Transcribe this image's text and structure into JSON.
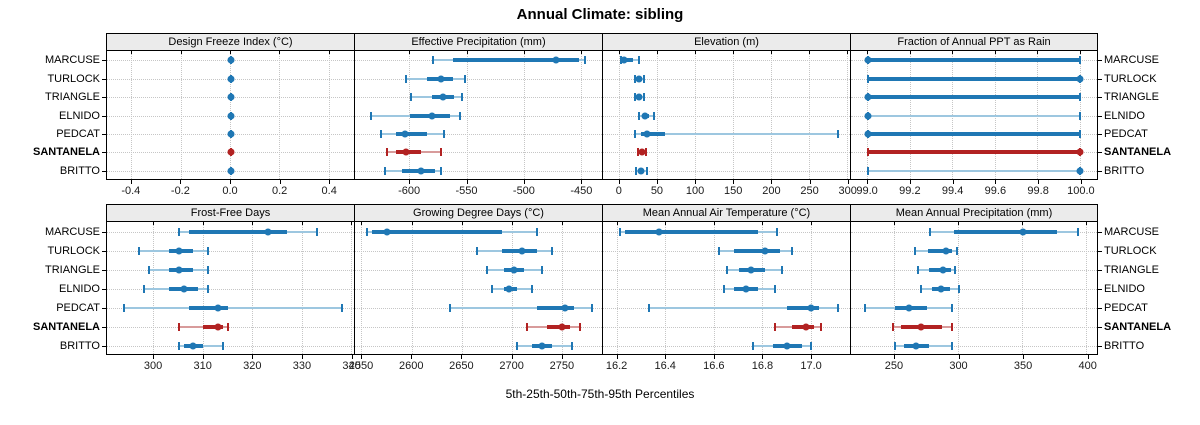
{
  "title": "Annual Climate: sibling",
  "caption": "5th-25th-50th-75th-95th Percentiles",
  "sites": [
    "MARCUSE",
    "TURLOCK",
    "TRIANGLE",
    "ELNIDO",
    "PEDCAT",
    "SANTANELA",
    "BRITTO"
  ],
  "colors": {
    "series": "#1f77b4",
    "series_light": "#9dc7e0",
    "highlight": "#b22222",
    "highlight_light": "#d89b9b",
    "header_bg": "#ebebeb",
    "grid": "#c6c6c6",
    "border": "#000000"
  },
  "chart_data": {
    "type": "scatter",
    "subtype": "trellis-percentile-dotplot",
    "title": "Annual Climate: sibling",
    "footnote": "5th-25th-50th-75th-95th Percentiles",
    "categories": [
      "MARCUSE",
      "TURLOCK",
      "TRIANGLE",
      "ELNIDO",
      "PEDCAT",
      "SANTANELA",
      "BRITTO"
    ],
    "highlight_category": "SANTANELA",
    "percentiles": [
      5,
      25,
      50,
      75,
      95
    ],
    "grid": true,
    "panels": [
      {
        "title": "Design Freeze Index (°C)",
        "row": 1,
        "col": 1,
        "xlim": [
          -0.5,
          0.5
        ],
        "xticks": [
          "-0.4",
          "-0.2",
          "0.0",
          "0.2",
          "0.4"
        ],
        "series": {
          "MARCUSE": [
            0,
            0,
            0,
            0,
            0
          ],
          "TURLOCK": [
            0,
            0,
            0,
            0,
            0
          ],
          "TRIANGLE": [
            0,
            0,
            0,
            0,
            0
          ],
          "ELNIDO": [
            0,
            0,
            0,
            0,
            0
          ],
          "PEDCAT": [
            0,
            0,
            0,
            0,
            0
          ],
          "SANTANELA": [
            0,
            0,
            0,
            0,
            0
          ],
          "BRITTO": [
            0,
            0,
            0,
            0,
            0
          ]
        }
      },
      {
        "title": "Effective Precipitation (mm)",
        "row": 1,
        "col": 2,
        "xlim": [
          -648,
          -432
        ],
        "xticks": [
          "-600",
          "-550",
          "-500",
          "-450"
        ],
        "series": {
          "MARCUSE": [
            -580,
            -562,
            -472,
            -452,
            -447
          ],
          "TURLOCK": [
            -603,
            -585,
            -573,
            -562,
            -552
          ],
          "TRIANGLE": [
            -599,
            -581,
            -571,
            -561,
            -554
          ],
          "ELNIDO": [
            -634,
            -600,
            -581,
            -565,
            -556
          ],
          "PEDCAT": [
            -625,
            -612,
            -604,
            -585,
            -570
          ],
          "SANTANELA": [
            -620,
            -612,
            -603,
            -590,
            -573
          ],
          "BRITTO": [
            -622,
            -607,
            -590,
            -578,
            -573
          ]
        }
      },
      {
        "title": "Elevation (m)",
        "row": 1,
        "col": 3,
        "xlim": [
          -22,
          303
        ],
        "xticks": [
          "0",
          "50",
          "100",
          "150",
          "200",
          "250",
          "300"
        ],
        "series": {
          "MARCUSE": [
            2,
            3,
            5,
            18,
            25
          ],
          "TURLOCK": [
            20,
            23,
            26,
            29,
            32
          ],
          "TRIANGLE": [
            20,
            23,
            26,
            29,
            32
          ],
          "ELNIDO": [
            26,
            30,
            33,
            38,
            45
          ],
          "PEDCAT": [
            20,
            28,
            36,
            60,
            287
          ],
          "SANTANELA": [
            24,
            27,
            29,
            31,
            34
          ],
          "BRITTO": [
            22,
            26,
            28,
            31,
            36
          ]
        }
      },
      {
        "title": "Fraction of Annual PPT as Rain",
        "row": 1,
        "col": 4,
        "xlim": [
          98.92,
          100.08
        ],
        "xticks": [
          "99.0",
          "99.2",
          "99.4",
          "99.6",
          "99.8",
          "100.0"
        ],
        "series": {
          "MARCUSE": [
            99.0,
            99.0,
            99.0,
            100.0,
            100.0
          ],
          "TURLOCK": [
            99.0,
            99.0,
            100.0,
            100.0,
            100.0
          ],
          "TRIANGLE": [
            99.0,
            99.0,
            99.0,
            100.0,
            100.0
          ],
          "ELNIDO": [
            99.0,
            99.0,
            99.0,
            99.0,
            100.0
          ],
          "PEDCAT": [
            99.0,
            99.0,
            99.0,
            100.0,
            100.0
          ],
          "SANTANELA": [
            99.0,
            99.0,
            100.0,
            100.0,
            100.0
          ],
          "BRITTO": [
            99.0,
            100.0,
            100.0,
            100.0,
            100.0
          ]
        }
      },
      {
        "title": "Frost-Free Days",
        "row": 2,
        "col": 1,
        "xlim": [
          290.5,
          340.5
        ],
        "xticks": [
          "300",
          "310",
          "320",
          "330",
          "340"
        ],
        "series": {
          "MARCUSE": [
            305,
            307,
            323,
            327,
            333
          ],
          "TURLOCK": [
            297,
            303,
            305,
            308,
            311
          ],
          "TRIANGLE": [
            299,
            303,
            305,
            308,
            311
          ],
          "ELNIDO": [
            298,
            303,
            306,
            309,
            311
          ],
          "PEDCAT": [
            294,
            307,
            313,
            315,
            338
          ],
          "SANTANELA": [
            305,
            310,
            313,
            314,
            315
          ],
          "BRITTO": [
            305,
            306,
            308,
            310,
            314
          ]
        }
      },
      {
        "title": "Growing Degree Days (°C)",
        "row": 2,
        "col": 2,
        "xlim": [
          2543,
          2790
        ],
        "xticks": [
          "2550",
          "2600",
          "2650",
          "2700",
          "2750"
        ],
        "series": {
          "MARCUSE": [
            2555,
            2560,
            2575,
            2690,
            2725
          ],
          "TURLOCK": [
            2665,
            2690,
            2710,
            2725,
            2740
          ],
          "TRIANGLE": [
            2675,
            2692,
            2702,
            2712,
            2730
          ],
          "ELNIDO": [
            2680,
            2692,
            2697,
            2705,
            2720
          ],
          "PEDCAT": [
            2638,
            2725,
            2753,
            2762,
            2780
          ],
          "SANTANELA": [
            2715,
            2735,
            2750,
            2758,
            2768
          ],
          "BRITTO": [
            2705,
            2720,
            2730,
            2740,
            2760
          ]
        }
      },
      {
        "title": "Mean Annual Air Temperature (°C)",
        "row": 2,
        "col": 3,
        "xlim": [
          16.14,
          17.16
        ],
        "xticks": [
          "16.2",
          "16.4",
          "16.6",
          "16.8",
          "17.0"
        ],
        "series": {
          "MARCUSE": [
            16.21,
            16.23,
            16.37,
            16.78,
            16.86
          ],
          "TURLOCK": [
            16.62,
            16.68,
            16.81,
            16.87,
            16.92
          ],
          "TRIANGLE": [
            16.65,
            16.7,
            16.75,
            16.81,
            16.88
          ],
          "ELNIDO": [
            16.64,
            16.68,
            16.73,
            16.78,
            16.85
          ],
          "PEDCAT": [
            16.33,
            16.9,
            17.0,
            17.03,
            17.11
          ],
          "SANTANELA": [
            16.85,
            16.92,
            16.98,
            17.01,
            17.04
          ],
          "BRITTO": [
            16.76,
            16.84,
            16.9,
            16.96,
            17.0
          ]
        }
      },
      {
        "title": "Mean Annual Precipitation (mm)",
        "row": 2,
        "col": 4,
        "xlim": [
          216,
          408
        ],
        "xticks": [
          "250",
          "300",
          "350",
          "400"
        ],
        "series": {
          "MARCUSE": [
            278,
            296,
            350,
            377,
            393
          ],
          "TURLOCK": [
            266,
            276,
            290,
            295,
            299
          ],
          "TRIANGLE": [
            268,
            277,
            288,
            294,
            297
          ],
          "ELNIDO": [
            271,
            279,
            286,
            293,
            300
          ],
          "PEDCAT": [
            227,
            250,
            261,
            275,
            295
          ],
          "SANTANELA": [
            249,
            255,
            271,
            287,
            295
          ],
          "BRITTO": [
            250,
            257,
            267,
            277,
            295
          ]
        }
      }
    ]
  }
}
